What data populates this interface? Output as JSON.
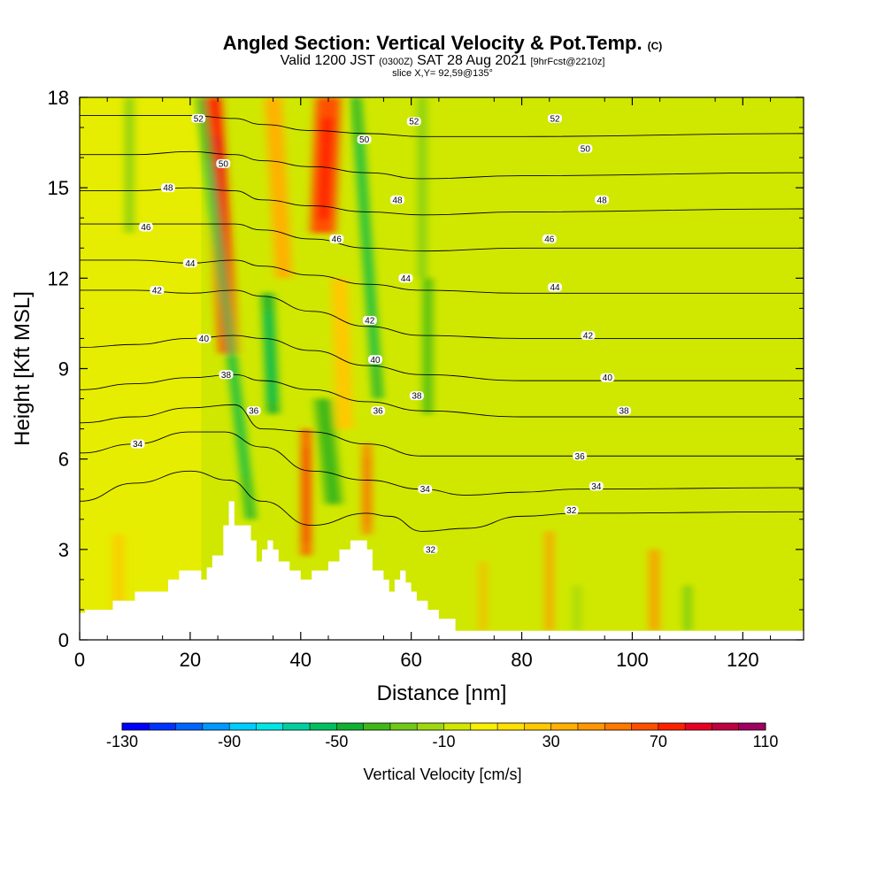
{
  "header": {
    "title": "Angled Section: Vertical Velocity & Pot.Temp.",
    "title_unit": "(C)",
    "valid_prefix": "Valid 1200 JST",
    "valid_utc": "(0300Z)",
    "valid_date": "SAT 28 Aug 2021",
    "forecast": "[9hrFcst@2210z]",
    "slice": "slice X,Y= 92,59@135°"
  },
  "chart_data": {
    "type": "heatmap",
    "xlabel": "Distance [nm]",
    "ylabel": "Height [Kft MSL]",
    "xlim": [
      0,
      131
    ],
    "ylim": [
      0,
      18
    ],
    "x_ticks": [
      0,
      20,
      40,
      60,
      80,
      100,
      120
    ],
    "y_ticks": [
      0,
      3,
      6,
      9,
      12,
      15,
      18
    ],
    "colorbar": {
      "label": "Vertical Velocity [cm/s]",
      "min": -130,
      "max": 110,
      "step": 10,
      "tick_labels": [
        "-130",
        "-90",
        "-50",
        "-10",
        "30",
        "70",
        "110"
      ],
      "colors": [
        "#0000ff",
        "#0033ff",
        "#0066ff",
        "#0099ff",
        "#00ccff",
        "#00e5e5",
        "#00d0a0",
        "#00c060",
        "#10b030",
        "#40b818",
        "#70c818",
        "#a0d810",
        "#d0e800",
        "#f8f000",
        "#ffe000",
        "#ffc800",
        "#ffb000",
        "#ff9800",
        "#ff7800",
        "#ff5000",
        "#ff2000",
        "#e80020",
        "#c00040",
        "#a00060",
        "#800080"
      ]
    },
    "terrain_profile": {
      "x": [
        0,
        1,
        1,
        6,
        6,
        10,
        10,
        16,
        16,
        18,
        18,
        20,
        20,
        22,
        22,
        23,
        23,
        24,
        24,
        26,
        26,
        27,
        27,
        28,
        28,
        31,
        31,
        32,
        32,
        33,
        33,
        34,
        34,
        35,
        35,
        36,
        36,
        38,
        38,
        40,
        40,
        42,
        42,
        45,
        45,
        47,
        47,
        49,
        49,
        52,
        52,
        53,
        53,
        55,
        55,
        56,
        56,
        57,
        57,
        58,
        58,
        59,
        59,
        60,
        60,
        61,
        61,
        63,
        63,
        65,
        65,
        68,
        68,
        70,
        70,
        131
      ],
      "y": [
        0.9,
        0.9,
        1.0,
        1.0,
        1.3,
        1.3,
        1.6,
        1.6,
        2.0,
        2.0,
        2.3,
        2.3,
        2.3,
        2.3,
        2.0,
        2.0,
        2.4,
        2.4,
        2.8,
        2.8,
        3.8,
        3.8,
        4.6,
        4.6,
        3.8,
        3.8,
        3.3,
        3.3,
        2.6,
        2.6,
        3.0,
        3.0,
        3.3,
        3.3,
        3.0,
        3.0,
        2.6,
        2.6,
        2.3,
        2.3,
        2.0,
        2.0,
        2.3,
        2.3,
        2.6,
        2.6,
        3.0,
        3.0,
        3.3,
        3.3,
        3.0,
        3.0,
        2.3,
        2.3,
        2.0,
        2.0,
        1.6,
        1.6,
        2.0,
        2.0,
        2.3,
        2.3,
        1.9,
        1.9,
        1.6,
        1.6,
        1.3,
        1.3,
        1.0,
        1.0,
        0.7,
        0.7,
        0.3,
        0.3,
        0.3,
        0.3
      ]
    },
    "updraft_bands": [
      {
        "x_bottom": 27,
        "x_top": 24,
        "y_from": 9.5,
        "y_to": 18,
        "w": 3.2,
        "value": 75
      },
      {
        "x_bottom": 44,
        "x_top": 45,
        "y_from": 13.5,
        "y_to": 18,
        "w": 4.5,
        "value": 60
      },
      {
        "x_bottom": 41,
        "x_top": 41,
        "y_from": 2.8,
        "y_to": 7.0,
        "w": 1.6,
        "value": 60
      },
      {
        "x_bottom": 52,
        "x_top": 52,
        "y_from": 3.5,
        "y_to": 6.5,
        "w": 1.4,
        "value": 55
      },
      {
        "x_bottom": 37,
        "x_top": 35,
        "y_from": 12.0,
        "y_to": 18,
        "w": 3.0,
        "value": 35
      },
      {
        "x_bottom": 48,
        "x_top": 47,
        "y_from": 7.0,
        "y_to": 12.0,
        "w": 3.0,
        "value": 25
      },
      {
        "x_bottom": 85,
        "x_top": 85,
        "y_from": 0.3,
        "y_to": 3.6,
        "w": 1.2,
        "value": 40
      },
      {
        "x_bottom": 104,
        "x_top": 104,
        "y_from": 0.3,
        "y_to": 3.0,
        "w": 1.6,
        "value": 40
      },
      {
        "x_bottom": 73,
        "x_top": 73,
        "y_from": 0.3,
        "y_to": 2.6,
        "w": 1.0,
        "value": 35
      },
      {
        "x_bottom": 7,
        "x_top": 7,
        "y_from": 0.9,
        "y_to": 3.5,
        "w": 1.6,
        "value": 25
      }
    ],
    "downdraft_bands": [
      {
        "x_bottom": 31,
        "x_top": 22,
        "y_from": 4.0,
        "y_to": 18,
        "w": 1.5,
        "value": -45
      },
      {
        "x_bottom": 35,
        "x_top": 34,
        "y_from": 7.5,
        "y_to": 11.5,
        "w": 2.0,
        "value": -45
      },
      {
        "x_bottom": 54,
        "x_top": 50,
        "y_from": 8.0,
        "y_to": 18,
        "w": 1.5,
        "value": -45
      },
      {
        "x_bottom": 46,
        "x_top": 44,
        "y_from": 4.5,
        "y_to": 8.0,
        "w": 3.0,
        "value": -35
      },
      {
        "x_bottom": 63,
        "x_top": 63,
        "y_from": 7.5,
        "y_to": 12.0,
        "w": 1.5,
        "value": -35
      },
      {
        "x_bottom": 62,
        "x_top": 62,
        "y_from": 12.0,
        "y_to": 18,
        "w": 1.2,
        "value": -25
      },
      {
        "x_bottom": 9,
        "x_top": 9,
        "y_from": 13.5,
        "y_to": 18,
        "w": 1.2,
        "value": -25
      },
      {
        "x_bottom": 110,
        "x_top": 110,
        "y_from": 0.3,
        "y_to": 1.8,
        "w": 0.8,
        "value": -40
      },
      {
        "x_bottom": 90,
        "x_top": 90,
        "y_from": 0.3,
        "y_to": 1.8,
        "w": 0.6,
        "value": -30
      }
    ],
    "isentropes": [
      {
        "level": 32,
        "x": [
          0,
          10,
          20,
          27,
          33,
          42,
          52,
          56,
          62,
          70,
          80,
          90,
          131
        ],
        "y": [
          4.6,
          5.2,
          5.6,
          5.3,
          4.6,
          3.8,
          4.2,
          4.1,
          3.6,
          3.7,
          4.1,
          4.2,
          4.25
        ]
      },
      {
        "level": 34,
        "x": [
          0,
          10,
          20,
          26,
          33,
          42,
          52,
          62,
          70,
          80,
          90,
          131
        ],
        "y": [
          6.2,
          6.5,
          6.9,
          6.9,
          6.4,
          5.6,
          5.3,
          5.0,
          4.8,
          4.9,
          5.0,
          5.05
        ]
      },
      {
        "level": 36,
        "x": [
          0,
          10,
          20,
          28,
          33,
          42,
          52,
          62,
          80,
          131
        ],
        "y": [
          7.2,
          7.4,
          7.7,
          7.8,
          7.0,
          6.9,
          6.5,
          6.1,
          6.1,
          6.1
        ]
      },
      {
        "level": 38,
        "x": [
          0,
          10,
          20,
          28,
          33,
          42,
          52,
          62,
          80,
          131
        ],
        "y": [
          8.3,
          8.5,
          8.7,
          8.8,
          8.6,
          8.3,
          7.9,
          7.6,
          7.4,
          7.4
        ]
      },
      {
        "level": 40,
        "x": [
          0,
          10,
          20,
          28,
          33,
          42,
          52,
          62,
          80,
          131
        ],
        "y": [
          9.7,
          9.8,
          10.0,
          10.1,
          10.0,
          9.6,
          9.1,
          8.8,
          8.6,
          8.6
        ]
      },
      {
        "level": 42,
        "x": [
          0,
          10,
          20,
          28,
          33,
          42,
          52,
          62,
          80,
          131
        ],
        "y": [
          11.6,
          11.6,
          11.5,
          11.6,
          11.4,
          10.9,
          10.4,
          10.1,
          10.0,
          10.0
        ]
      },
      {
        "level": 44,
        "x": [
          0,
          10,
          20,
          28,
          33,
          42,
          52,
          62,
          80,
          131
        ],
        "y": [
          12.6,
          12.6,
          12.5,
          12.6,
          12.4,
          12.1,
          11.8,
          11.6,
          11.5,
          11.5
        ]
      },
      {
        "level": 46,
        "x": [
          0,
          10,
          20,
          28,
          33,
          42,
          52,
          62,
          80,
          131
        ],
        "y": [
          13.8,
          13.8,
          13.8,
          13.8,
          13.6,
          13.3,
          13.0,
          12.9,
          13.0,
          13.0
        ]
      },
      {
        "level": 48,
        "x": [
          0,
          10,
          20,
          28,
          33,
          42,
          52,
          62,
          80,
          131
        ],
        "y": [
          14.9,
          14.9,
          15.0,
          14.9,
          14.6,
          14.4,
          14.2,
          14.1,
          14.2,
          14.3
        ]
      },
      {
        "level": 50,
        "x": [
          0,
          10,
          20,
          28,
          33,
          42,
          52,
          62,
          80,
          131
        ],
        "y": [
          16.1,
          16.1,
          16.2,
          16.1,
          15.9,
          15.7,
          15.5,
          15.3,
          15.4,
          15.5
        ]
      },
      {
        "level": 52,
        "x": [
          0,
          10,
          20,
          28,
          33,
          42,
          52,
          62,
          80,
          131
        ],
        "y": [
          17.4,
          17.4,
          17.4,
          17.3,
          17.1,
          16.9,
          16.8,
          16.7,
          16.7,
          16.8
        ]
      }
    ],
    "contour_labels": [
      {
        "text": "52",
        "x": 21.5,
        "y": 17.3
      },
      {
        "text": "52",
        "x": 60.5,
        "y": 17.2
      },
      {
        "text": "52",
        "x": 86,
        "y": 17.3
      },
      {
        "text": "50",
        "x": 26,
        "y": 15.8
      },
      {
        "text": "50",
        "x": 51.5,
        "y": 16.6
      },
      {
        "text": "50",
        "x": 91.5,
        "y": 16.3
      },
      {
        "text": "48",
        "x": 16,
        "y": 15.0
      },
      {
        "text": "48",
        "x": 57.5,
        "y": 14.6
      },
      {
        "text": "48",
        "x": 94.5,
        "y": 14.6
      },
      {
        "text": "46",
        "x": 12,
        "y": 13.7
      },
      {
        "text": "46",
        "x": 46.5,
        "y": 13.3
      },
      {
        "text": "46",
        "x": 85,
        "y": 13.3
      },
      {
        "text": "44",
        "x": 20,
        "y": 12.5
      },
      {
        "text": "44",
        "x": 59,
        "y": 12.0
      },
      {
        "text": "44",
        "x": 86,
        "y": 11.7
      },
      {
        "text": "42",
        "x": 14,
        "y": 11.6
      },
      {
        "text": "42",
        "x": 52.5,
        "y": 10.6
      },
      {
        "text": "42",
        "x": 92,
        "y": 10.1
      },
      {
        "text": "40",
        "x": 22.5,
        "y": 10.0
      },
      {
        "text": "40",
        "x": 53.5,
        "y": 9.3
      },
      {
        "text": "40",
        "x": 95.5,
        "y": 8.7
      },
      {
        "text": "38",
        "x": 26.5,
        "y": 8.8
      },
      {
        "text": "38",
        "x": 61,
        "y": 8.1
      },
      {
        "text": "38",
        "x": 98.5,
        "y": 7.6
      },
      {
        "text": "36",
        "x": 31.5,
        "y": 7.6
      },
      {
        "text": "36",
        "x": 54,
        "y": 7.6
      },
      {
        "text": "36",
        "x": 90.5,
        "y": 6.1
      },
      {
        "text": "34",
        "x": 10.5,
        "y": 6.5
      },
      {
        "text": "34",
        "x": 62.5,
        "y": 5.0
      },
      {
        "text": "34",
        "x": 93.5,
        "y": 5.1
      },
      {
        "text": "32",
        "x": 63.5,
        "y": 3.0
      },
      {
        "text": "32",
        "x": 89,
        "y": 4.3
      }
    ]
  }
}
